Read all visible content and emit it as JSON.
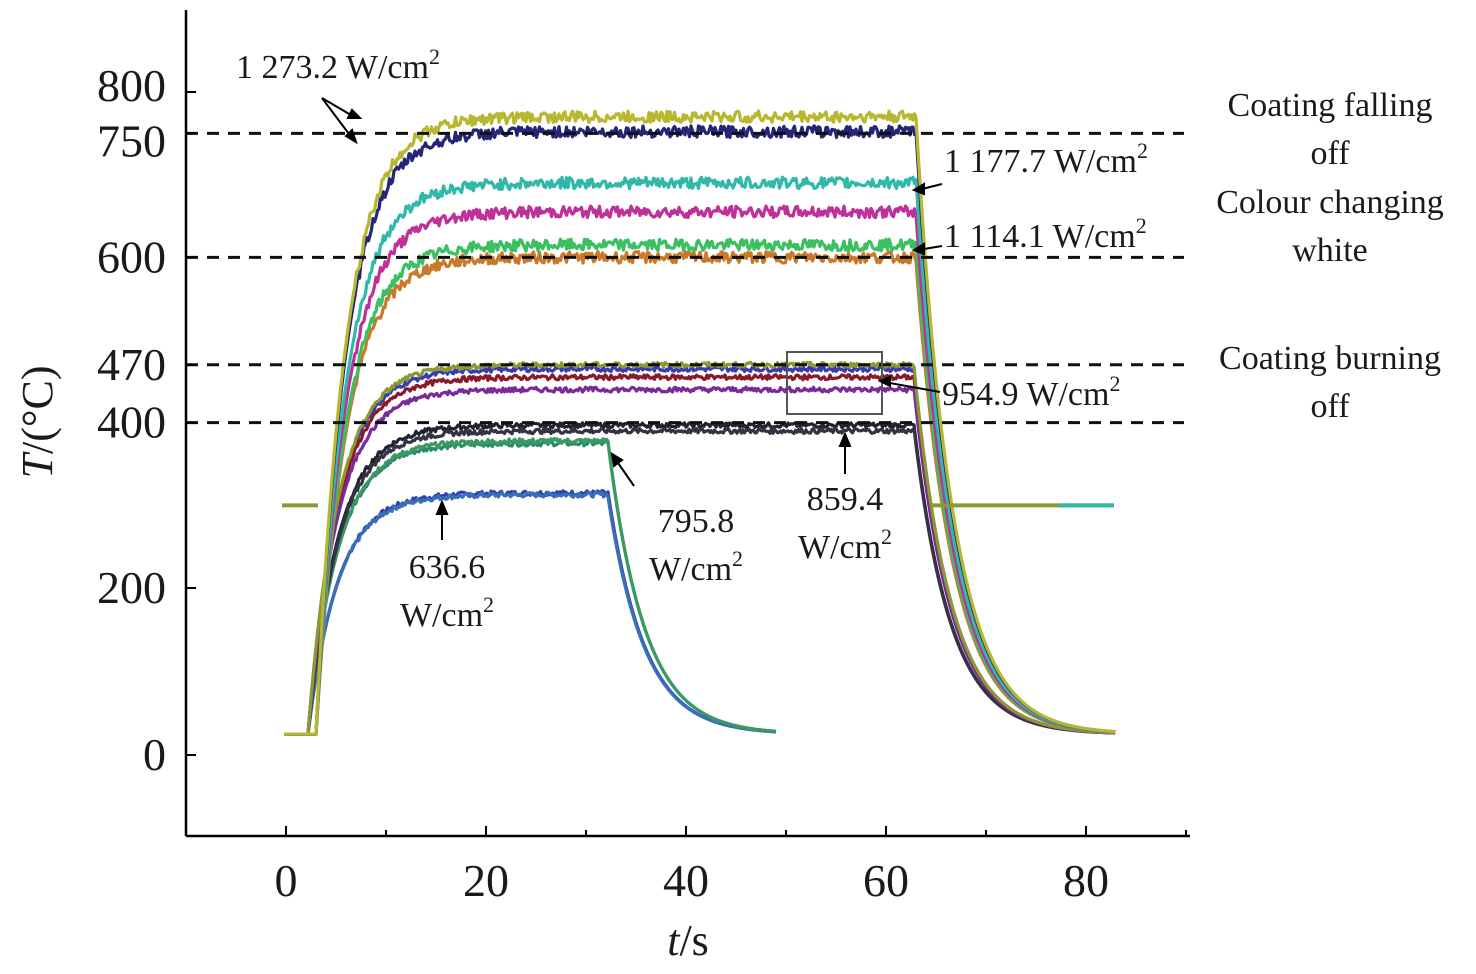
{
  "chart_data": {
    "type": "line",
    "xlabel": {
      "italic": "t",
      "rest": "/s"
    },
    "ylabel": {
      "italic": "T",
      "rest": "/(°C)"
    },
    "xlim": [
      -10,
      90
    ],
    "ylim": [
      -100,
      900
    ],
    "xticks": [
      "0",
      "20",
      "40",
      "60",
      "80"
    ],
    "xtick_values": [
      0,
      20,
      40,
      60,
      80
    ],
    "yticks": [
      "0",
      "200",
      "400",
      "470",
      "600",
      "750",
      "800"
    ],
    "ytick_values": [
      0,
      200,
      400,
      470,
      600,
      750,
      800
    ],
    "note": "y axis is piecewise: 0-200 linear and 200-800 compressed as drawn",
    "reference_lines": [
      {
        "y": 750,
        "label_lines": [
          "Coating falling",
          "off"
        ]
      },
      {
        "y": 600,
        "label_lines": [
          "Colour changing",
          "white"
        ]
      },
      {
        "y": 470,
        "label_lines": [
          "Coating burning",
          "off"
        ]
      },
      {
        "y": 400,
        "label_lines": []
      }
    ],
    "series": [
      {
        "group": "636.6 W/cm2",
        "color": "#2f3fb0",
        "t_on": 2.2,
        "t_off": 32.2,
        "plateau": 315,
        "t_end": 49
      },
      {
        "group": "636.6 W/cm2",
        "color": "#3a6fb8",
        "t_on": 2.2,
        "t_off": 32.2,
        "plateau": 313,
        "t_end": 49
      },
      {
        "group": "795.8 W/cm2",
        "color": "#2a8a70",
        "t_on": 2.2,
        "t_off": 32.2,
        "plateau": 375,
        "t_end": 49
      },
      {
        "group": "795.8 W/cm2",
        "color": "#3a9a60",
        "t_on": 2.2,
        "t_off": 32.2,
        "plateau": 378,
        "t_end": 49
      },
      {
        "group": "859.4 W/cm2",
        "color": "#222233",
        "t_on": 2.2,
        "t_off": 62.8,
        "plateau": 397,
        "t_end": 83
      },
      {
        "group": "859.4 W/cm2",
        "color": "#333344",
        "t_on": 2.2,
        "t_off": 62.8,
        "plateau": 390,
        "t_end": 83
      },
      {
        "group": "954.9 W/cm2",
        "color": "#3b3bb0",
        "t_on": 2.2,
        "t_off": 62.8,
        "plateau": 465,
        "t_end": 83
      },
      {
        "group": "954.9 W/cm2",
        "color": "#8a1a2a",
        "t_on": 2.2,
        "t_off": 62.8,
        "plateau": 455,
        "t_end": 83
      },
      {
        "group": "954.9 W/cm2",
        "color": "#7b2a9a",
        "t_on": 2.2,
        "t_off": 62.8,
        "plateau": 440,
        "t_end": 83
      },
      {
        "group": "954.9 W/cm2",
        "color": "#8a9a30",
        "t_on": 2.2,
        "t_off": 62.8,
        "plateau": 470,
        "t_end": 83
      },
      {
        "group": "1 114.1 W/cm2",
        "color": "#c87a2a",
        "t_on": 3.0,
        "t_off": 63.0,
        "plateau": 600,
        "t_end": 83
      },
      {
        "group": "1 114.1 W/cm2",
        "color": "#3ac060",
        "t_on": 3.0,
        "t_off": 63.0,
        "plateau": 615,
        "t_end": 83
      },
      {
        "group": "1 177.7 W/cm2",
        "color": "#c0309a",
        "t_on": 3.0,
        "t_off": 63.0,
        "plateau": 655,
        "t_end": 83
      },
      {
        "group": "1 177.7 W/cm2",
        "color": "#30b8a8",
        "t_on": 3.0,
        "t_off": 63.0,
        "plateau": 690,
        "t_end": 83
      },
      {
        "group": "1 273.2 W/cm2",
        "color": "#25257a",
        "t_on": 3.0,
        "t_off": 63.0,
        "plateau": 752,
        "t_end": 83
      },
      {
        "group": "1 273.2 W/cm2",
        "color": "#b8b830",
        "t_on": 3.0,
        "t_off": 63.0,
        "plateau": 770,
        "t_end": 83
      }
    ],
    "annotations": [
      {
        "key": "a1273",
        "text": "1 273.2 W/cm",
        "sup": "2"
      },
      {
        "key": "a1177",
        "text": "1 177.7 W/cm",
        "sup": "2"
      },
      {
        "key": "a1114",
        "text": "1 114.1 W/cm",
        "sup": "2"
      },
      {
        "key": "a954",
        "text": "954.9 W/cm",
        "sup": "2"
      },
      {
        "key": "a859",
        "line1": "859.4",
        "line2": "W/cm",
        "sup": "2"
      },
      {
        "key": "a795",
        "line1": "795.8",
        "line2": "W/cm",
        "sup": "2"
      },
      {
        "key": "a636",
        "line1": "636.6",
        "line2": "W/cm",
        "sup": "2"
      }
    ]
  }
}
